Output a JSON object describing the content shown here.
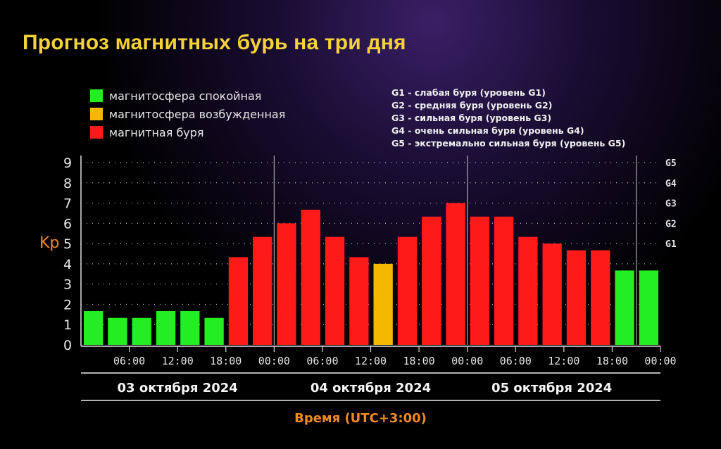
{
  "title": "Прогноз магнитных бурь на три дня",
  "legend": [
    {
      "label": "магнитосфера спокойная",
      "color": "#22ee22"
    },
    {
      "label": "магнитосфера возбужденная",
      "color": "#f5b800"
    },
    {
      "label": "магнитная буря",
      "color": "#ff1a1a"
    }
  ],
  "g_legend": [
    "G1 - слабая буря (уровень G1)",
    "G2 - средняя буря (уровень G2)",
    "G3 - сильная буря (уровень G3)",
    "G4 - очень сильная буря (уровень G4)",
    "G5 - экстремально сильная буря (уровень G5)"
  ],
  "chart_data": {
    "type": "bar",
    "title": "Прогноз магнитных бурь на три дня",
    "ylabel": "Kp",
    "xlabel": "Время (UTC+3:00)",
    "ylim": [
      0,
      9
    ],
    "yticks": [
      "0",
      "1",
      "2",
      "3",
      "4",
      "5",
      "6",
      "7",
      "8",
      "9"
    ],
    "g_ticks": [
      {
        "label": "G1",
        "kp": 5
      },
      {
        "label": "G2",
        "kp": 6
      },
      {
        "label": "G3",
        "kp": 7
      },
      {
        "label": "G4",
        "kp": 8
      },
      {
        "label": "G5",
        "kp": 9
      }
    ],
    "values": [
      1.67,
      1.33,
      1.33,
      1.67,
      1.67,
      1.33,
      4.33,
      5.33,
      6.0,
      6.67,
      5.33,
      4.33,
      4.0,
      5.33,
      6.33,
      7.0,
      6.33,
      6.33,
      5.33,
      5.0,
      4.67,
      4.67,
      3.67,
      3.67
    ],
    "colors": [
      "green",
      "green",
      "green",
      "green",
      "green",
      "green",
      "red",
      "red",
      "red",
      "red",
      "red",
      "red",
      "yellow",
      "red",
      "red",
      "red",
      "red",
      "red",
      "red",
      "red",
      "red",
      "red",
      "green",
      "green"
    ],
    "color_map": {
      "green": "#22ee22",
      "yellow": "#f5b800",
      "red": "#ff1a1a"
    },
    "xtick_labels": [
      "06:00",
      "12:00",
      "18:00",
      "00:00",
      "06:00",
      "12:00",
      "18:00",
      "00:00",
      "06:00",
      "12:00",
      "18:00",
      "00:00"
    ],
    "days": [
      "03 октября 2024",
      "04 октября 2024",
      "05 октября 2024"
    ],
    "grid": true
  }
}
